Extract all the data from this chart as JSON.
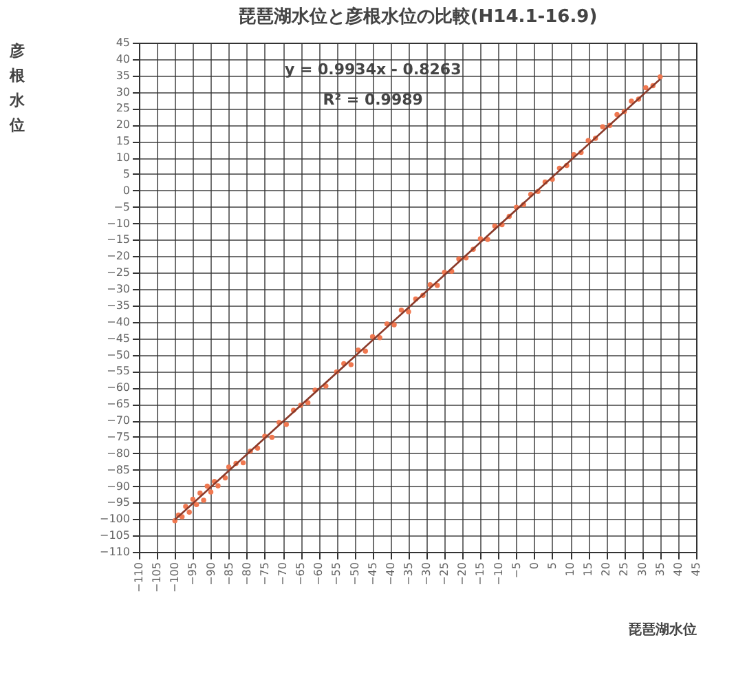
{
  "chart_data": {
    "type": "scatter",
    "title": "琵琶湖水位と彦根水位の比較(H14.1-16.9)",
    "xlabel": "琵琶湖水位",
    "ylabel": "彦根水位",
    "annotations": [
      "y = 0.9934x - 0.8263",
      "R² = 0.9989"
    ],
    "xlim": [
      -110,
      45
    ],
    "ylim": [
      -110,
      45
    ],
    "xticks": [
      -110,
      -105,
      -100,
      -95,
      -90,
      -85,
      -80,
      -75,
      -70,
      -65,
      -60,
      -55,
      -50,
      -45,
      -40,
      -35,
      -30,
      -25,
      -20,
      -15,
      -10,
      -5,
      0,
      5,
      10,
      15,
      20,
      25,
      30,
      35,
      40,
      45
    ],
    "yticks": [
      -110,
      -105,
      -100,
      -95,
      -90,
      -85,
      -80,
      -75,
      -70,
      -65,
      -60,
      -55,
      -50,
      -45,
      -40,
      -35,
      -30,
      -25,
      -20,
      -15,
      -10,
      -5,
      0,
      5,
      10,
      15,
      20,
      25,
      30,
      35,
      40,
      45
    ],
    "grid": true,
    "series": [
      {
        "marker": "circle",
        "color": "#f07850",
        "x": [
          -100,
          -99,
          -98,
          -97,
          -96,
          -95,
          -94,
          -93,
          -92,
          -91,
          -90,
          -89,
          -88,
          -86,
          -85,
          -83,
          -81,
          -79,
          -77,
          -75,
          -73,
          -71,
          -69,
          -67,
          -65,
          -63,
          -61,
          -58,
          -55,
          -53,
          -51,
          -49,
          -47,
          -45,
          -43,
          -41,
          -39,
          -37,
          -35,
          -33,
          -31,
          -29,
          -27,
          -25,
          -23,
          -21,
          -19,
          -17,
          -15,
          -13,
          -11,
          -9,
          -7,
          -5,
          -3,
          -1,
          1,
          3,
          5,
          7,
          9,
          11,
          13,
          15,
          17,
          19,
          21,
          23,
          25,
          27,
          29,
          31,
          33,
          35
        ],
        "values": [
          -100.5,
          -98.8,
          -99.3,
          -96.2,
          -97.9,
          -94.0,
          -95.6,
          -92.1,
          -94.3,
          -90.0,
          -91.8,
          -88.6,
          -89.9,
          -87.5,
          -84.2,
          -83.1,
          -82.9,
          -79.3,
          -78.4,
          -74.8,
          -75.1,
          -70.6,
          -71.2,
          -66.9,
          -65.4,
          -64.6,
          -60.8,
          -59.5,
          -55.2,
          -52.7,
          -53.0,
          -48.6,
          -48.9,
          -44.5,
          -44.8,
          -40.6,
          -40.9,
          -36.4,
          -36.9,
          -33.0,
          -31.9,
          -28.7,
          -28.9,
          -24.9,
          -24.6,
          -20.8,
          -20.5,
          -17.9,
          -14.7,
          -14.9,
          -10.8,
          -10.4,
          -7.9,
          -5.1,
          -4.3,
          -1.2,
          -0.3,
          2.6,
          3.4,
          6.8,
          7.6,
          10.9,
          11.6,
          15.2,
          15.9,
          19.4,
          19.8,
          23.1,
          24.0,
          27.2,
          27.8,
          31.3,
          31.9,
          34.6
        ]
      },
      {
        "type": "line",
        "color": "#8a3a2a",
        "x": [
          -100,
          35
        ],
        "values": [
          -100.2,
          33.9
        ]
      }
    ]
  }
}
